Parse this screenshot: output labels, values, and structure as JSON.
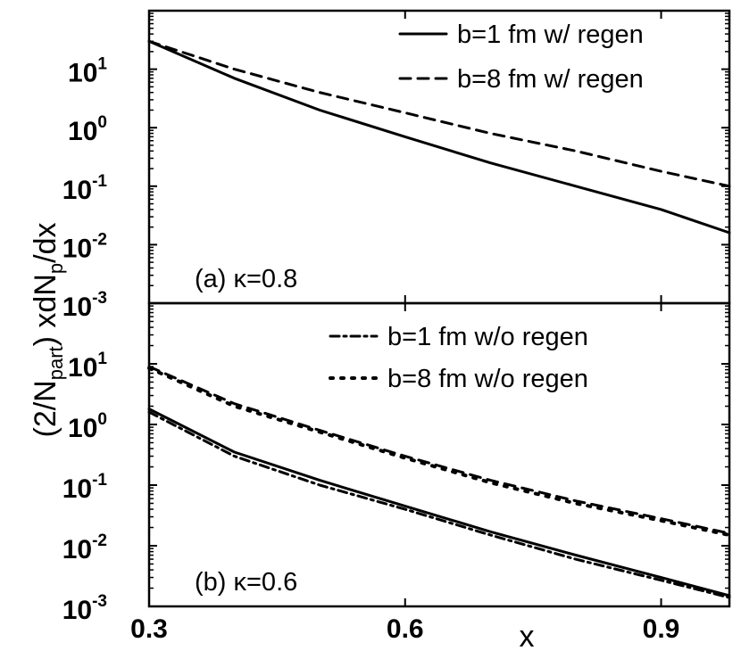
{
  "chart_data": [
    {
      "type": "line",
      "panel_label": "(a) κ=0.8",
      "xlabel": "x",
      "ylabel": "(2/N_part) xdN_p/dx",
      "y_scale": "log",
      "xlim": [
        0.3,
        0.98
      ],
      "ylim": [
        0.001,
        100
      ],
      "x_ticks": [
        "0.3",
        "0.6",
        "0.9"
      ],
      "y_ticks": [
        {
          "base": "10",
          "exp": "-3"
        },
        {
          "base": "10",
          "exp": "-2"
        },
        {
          "base": "10",
          "exp": "-1"
        },
        {
          "base": "10",
          "exp": "0"
        },
        {
          "base": "10",
          "exp": "1"
        }
      ],
      "grid": false,
      "legend_position": "top-right",
      "series": [
        {
          "name": "b=1 fm w/ regen",
          "style": "solid",
          "x": [
            0.3,
            0.4,
            0.5,
            0.6,
            0.7,
            0.8,
            0.9,
            0.98
          ],
          "y": [
            30,
            7,
            2,
            0.7,
            0.25,
            0.1,
            0.04,
            0.016
          ]
        },
        {
          "name": "b=8 fm w/ regen",
          "style": "dashed",
          "x": [
            0.3,
            0.4,
            0.5,
            0.6,
            0.7,
            0.8,
            0.9,
            0.98
          ],
          "y": [
            30,
            10,
            4,
            1.8,
            0.8,
            0.4,
            0.18,
            0.1
          ]
        }
      ]
    },
    {
      "type": "line",
      "panel_label": "(b) κ=0.6",
      "xlabel": "x",
      "ylabel": "(2/N_part) xdN_p/dx",
      "y_scale": "log",
      "xlim": [
        0.3,
        0.98
      ],
      "ylim": [
        0.001,
        100
      ],
      "x_ticks": [
        "0.3",
        "0.6",
        "0.9"
      ],
      "y_ticks": [
        {
          "base": "10",
          "exp": "-3"
        },
        {
          "base": "10",
          "exp": "-2"
        },
        {
          "base": "10",
          "exp": "-1"
        },
        {
          "base": "10",
          "exp": "0"
        },
        {
          "base": "10",
          "exp": "1"
        }
      ],
      "grid": false,
      "legend_position": "top-right",
      "series": [
        {
          "name": "",
          "style": "solid",
          "x": [
            0.3,
            0.4,
            0.5,
            0.6,
            0.7,
            0.8,
            0.9,
            0.98
          ],
          "y": [
            1.8,
            0.35,
            0.12,
            0.045,
            0.017,
            0.007,
            0.003,
            0.0015
          ]
        },
        {
          "name": "",
          "style": "dashed",
          "x": [
            0.3,
            0.4,
            0.5,
            0.6,
            0.7,
            0.8,
            0.9,
            0.98
          ],
          "y": [
            9,
            2.2,
            0.8,
            0.3,
            0.12,
            0.055,
            0.028,
            0.016
          ]
        },
        {
          "name": "b=1 fm w/o regen",
          "style": "dashdot",
          "x": [
            0.3,
            0.4,
            0.5,
            0.6,
            0.7,
            0.8,
            0.9,
            0.98
          ],
          "y": [
            1.6,
            0.3,
            0.1,
            0.04,
            0.015,
            0.006,
            0.0027,
            0.0014
          ]
        },
        {
          "name": "b=8 fm w/o regen",
          "style": "dotted",
          "x": [
            0.3,
            0.4,
            0.5,
            0.6,
            0.7,
            0.8,
            0.9,
            0.98
          ],
          "y": [
            8.5,
            2.0,
            0.75,
            0.28,
            0.11,
            0.05,
            0.026,
            0.015
          ]
        }
      ]
    }
  ]
}
